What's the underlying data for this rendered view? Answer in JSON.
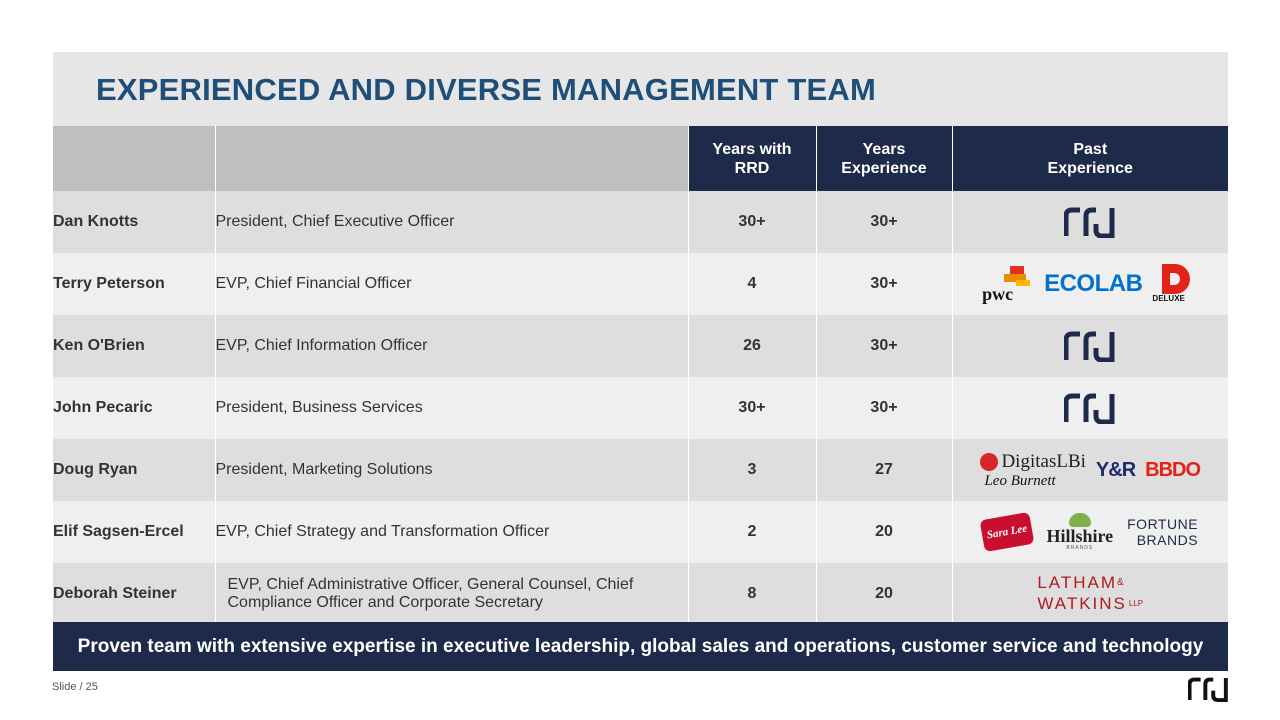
{
  "title": "EXPERIENCED AND DIVERSE MANAGEMENT TEAM",
  "columns": {
    "years_rrd": [
      "Years with",
      "RRD"
    ],
    "years_exp": [
      "Years",
      "Experience"
    ],
    "past_exp": [
      "Past",
      "Experience"
    ]
  },
  "rows": [
    {
      "name": "Dan Knotts",
      "role": "President, Chief Executive Officer",
      "years_rrd": "30+",
      "years_exp": "30+",
      "logos": [
        "rrd-logo"
      ]
    },
    {
      "name": "Terry Peterson",
      "role": "EVP, Chief Financial Officer",
      "years_rrd": "4",
      "years_exp": "30+",
      "logos": [
        "pwc-logo",
        "ecolab-logo",
        "deluxe-logo"
      ]
    },
    {
      "name": "Ken O'Brien",
      "role": "EVP, Chief Information Officer",
      "years_rrd": "26",
      "years_exp": "30+",
      "logos": [
        "rrd-logo"
      ]
    },
    {
      "name": "John Pecaric",
      "role": "President, Business Services",
      "years_rrd": "30+",
      "years_exp": "30+",
      "logos": [
        "rrd-logo"
      ]
    },
    {
      "name": "Doug Ryan",
      "role": "President, Marketing Solutions",
      "years_rrd": "3",
      "years_exp": "27",
      "logos": [
        "digitaslbi-logo",
        "leo-burnett-logo",
        "yr-logo",
        "bbdo-logo"
      ]
    },
    {
      "name": "Elif Sagsen-Ercel",
      "role": "EVP,  Chief Strategy and Transformation Officer",
      "years_rrd": "2",
      "years_exp": "20",
      "logos": [
        "sara-lee-logo",
        "hillshire-logo",
        "fortune-brands-logo"
      ]
    },
    {
      "name": "Deborah Steiner",
      "role": "EVP, Chief Administrative Officer, General Counsel, Chief Compliance Officer and Corporate Secretary",
      "years_rrd": "8",
      "years_exp": "20",
      "logos": [
        "latham-watkins-logo"
      ]
    }
  ],
  "logo_text": {
    "pwc": "pwc",
    "ecolab": "ECOLAB",
    "deluxe": "DELUXE",
    "digitaslbi": "DigitasLBi",
    "leo_burnett": "Leo Burnett",
    "yr": "Y&R",
    "bbdo": "BBDO",
    "sara_lee": "Sara Lee",
    "hillshire": "Hillshire",
    "hillshire_sub": "BRANDS",
    "fortune_1": "FORTUNE",
    "fortune_2": "BRANDS",
    "latham_1": "LATHAM",
    "latham_amp": "&",
    "latham_2": "WATKINS",
    "latham_llp": "LLP"
  },
  "footer": "Proven team with extensive expertise in executive leadership, global sales and operations, customer service and technology",
  "slide_label": "Slide / 25",
  "colors": {
    "navy": "#1e2a4a",
    "title_blue": "#1f4e79",
    "ecolab_blue": "#0072ce",
    "red": "#e2231a"
  }
}
